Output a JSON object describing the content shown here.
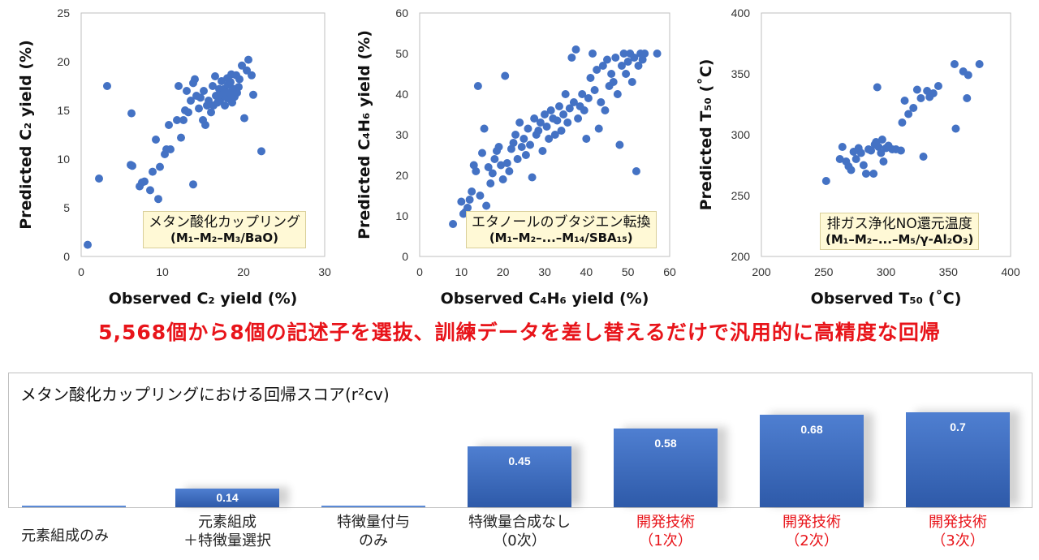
{
  "chart_data": [
    {
      "type": "scatter",
      "xlabel": "Observed C₂ yield (%)",
      "ylabel": "Predicted C₂ yield (%)",
      "xlim": [
        0,
        30
      ],
      "ylim": [
        0,
        25
      ],
      "xticks": [
        0,
        10,
        20,
        30
      ],
      "yticks": [
        0,
        5,
        10,
        15,
        20,
        25
      ],
      "annotation_line1": "メタン酸化カップリング",
      "annotation_line2": "(M₁–M₂–M₃/BaO)",
      "color": "#4472c4",
      "points": [
        [
          0.8,
          1.2
        ],
        [
          2.2,
          8
        ],
        [
          3.2,
          17.5
        ],
        [
          6.2,
          14.7
        ],
        [
          6.1,
          9.4
        ],
        [
          6.3,
          9.3
        ],
        [
          7.2,
          7.2
        ],
        [
          7.5,
          7.6
        ],
        [
          7.8,
          7.7
        ],
        [
          8.5,
          6.8
        ],
        [
          8.8,
          8.7
        ],
        [
          9.2,
          12
        ],
        [
          9.5,
          5.9
        ],
        [
          9.7,
          9.2
        ],
        [
          10.3,
          10.5
        ],
        [
          10.5,
          11
        ],
        [
          10.8,
          13.5
        ],
        [
          11,
          11
        ],
        [
          11.8,
          14
        ],
        [
          12,
          17.5
        ],
        [
          12.3,
          12.2
        ],
        [
          12.6,
          14
        ],
        [
          12.8,
          15
        ],
        [
          13,
          17
        ],
        [
          13.2,
          14.8
        ],
        [
          13.5,
          16
        ],
        [
          13.8,
          7.4
        ],
        [
          13.8,
          17.8
        ],
        [
          14,
          18.2
        ],
        [
          14.2,
          16.5
        ],
        [
          14.5,
          15.2
        ],
        [
          14.7,
          16.3
        ],
        [
          15,
          14
        ],
        [
          15.1,
          17
        ],
        [
          15.3,
          13.5
        ],
        [
          15.5,
          15.5
        ],
        [
          15.7,
          16
        ],
        [
          16,
          14.8
        ],
        [
          16.2,
          17.5
        ],
        [
          16.3,
          15.5
        ],
        [
          16.5,
          18.5
        ],
        [
          16.6,
          16.5
        ],
        [
          16.8,
          15.8
        ],
        [
          17,
          17.2
        ],
        [
          17.1,
          16
        ],
        [
          17.3,
          18
        ],
        [
          17.4,
          16.6
        ],
        [
          17.6,
          17.2
        ],
        [
          17.7,
          15.5
        ],
        [
          17.9,
          16.3
        ],
        [
          18,
          18.3
        ],
        [
          18.1,
          17.6
        ],
        [
          18.2,
          16.2
        ],
        [
          18.3,
          16.8
        ],
        [
          18.4,
          17.9
        ],
        [
          18.5,
          18.7
        ],
        [
          18.6,
          15.8
        ],
        [
          18.8,
          17.2
        ],
        [
          18.9,
          16.4
        ],
        [
          19.1,
          18.6
        ],
        [
          19.2,
          16.8
        ],
        [
          19.4,
          17.4
        ],
        [
          19.5,
          18.2
        ],
        [
          19.8,
          19.6
        ],
        [
          20.1,
          14.2
        ],
        [
          20.4,
          19.1
        ],
        [
          20.6,
          20.2
        ],
        [
          21,
          18.6
        ],
        [
          21.2,
          16.6
        ],
        [
          22.2,
          10.8
        ]
      ]
    },
    {
      "type": "scatter",
      "xlabel": "Observed C₄H₆ yield (%)",
      "ylabel": "Predicted C₄H₆ yield (%)",
      "xlim": [
        0,
        60
      ],
      "ylim": [
        0,
        60
      ],
      "xticks": [
        0,
        10,
        20,
        30,
        40,
        50,
        60
      ],
      "yticks": [
        0,
        10,
        20,
        30,
        40,
        50,
        60
      ],
      "annotation_line1": "エタノールのブタジエン転換",
      "annotation_line2": "(M₁–M₂–...–M₁₄/SBA₁₅)",
      "color": "#4472c4",
      "points": [
        [
          8,
          8
        ],
        [
          10,
          13.5
        ],
        [
          10.5,
          10.5
        ],
        [
          11,
          11
        ],
        [
          11.5,
          12
        ],
        [
          12,
          14
        ],
        [
          12.5,
          16
        ],
        [
          13,
          22.5
        ],
        [
          13.5,
          21
        ],
        [
          14,
          42
        ],
        [
          14.5,
          15
        ],
        [
          15,
          25.5
        ],
        [
          15.5,
          31.5
        ],
        [
          16,
          12.5
        ],
        [
          16.5,
          22
        ],
        [
          17,
          18
        ],
        [
          17.5,
          20.5
        ],
        [
          18,
          24
        ],
        [
          18.5,
          26
        ],
        [
          19,
          27
        ],
        [
          19.5,
          22.5
        ],
        [
          20,
          19
        ],
        [
          20.5,
          44.5
        ],
        [
          21,
          23
        ],
        [
          21.5,
          21
        ],
        [
          22,
          26.5
        ],
        [
          22.5,
          28
        ],
        [
          23,
          30
        ],
        [
          23.5,
          24
        ],
        [
          24,
          33
        ],
        [
          24.5,
          27
        ],
        [
          25,
          29
        ],
        [
          25.5,
          25
        ],
        [
          26,
          31.5
        ],
        [
          26.5,
          27.5
        ],
        [
          27,
          19.5
        ],
        [
          27.5,
          34
        ],
        [
          28,
          30
        ],
        [
          28.5,
          31
        ],
        [
          29,
          33
        ],
        [
          29.5,
          26
        ],
        [
          30,
          35
        ],
        [
          30.5,
          32
        ],
        [
          31,
          29
        ],
        [
          31.5,
          36
        ],
        [
          32,
          34
        ],
        [
          32.5,
          30
        ],
        [
          33,
          33.5
        ],
        [
          33.5,
          37
        ],
        [
          34,
          31
        ],
        [
          34.5,
          35
        ],
        [
          35,
          40
        ],
        [
          35.5,
          33
        ],
        [
          36,
          36.5
        ],
        [
          36.5,
          49
        ],
        [
          37,
          38
        ],
        [
          37.5,
          51
        ],
        [
          38,
          34
        ],
        [
          38.5,
          37
        ],
        [
          39,
          40
        ],
        [
          39.5,
          36
        ],
        [
          40,
          29
        ],
        [
          40.5,
          39
        ],
        [
          41,
          44
        ],
        [
          41.5,
          50
        ],
        [
          42,
          41
        ],
        [
          42.5,
          46
        ],
        [
          43,
          31.5
        ],
        [
          43.5,
          38
        ],
        [
          44,
          47
        ],
        [
          44.5,
          36
        ],
        [
          45,
          48.5
        ],
        [
          45.5,
          42
        ],
        [
          46,
          45
        ],
        [
          46.5,
          43
        ],
        [
          47,
          49
        ],
        [
          47.5,
          40
        ],
        [
          48,
          27.5
        ],
        [
          48.5,
          47
        ],
        [
          49,
          50
        ],
        [
          49.5,
          45
        ],
        [
          50,
          48
        ],
        [
          50.5,
          50
        ],
        [
          51,
          43
        ],
        [
          51.5,
          49
        ],
        [
          52,
          21
        ],
        [
          52.5,
          47
        ],
        [
          53,
          50
        ],
        [
          53.5,
          48.5
        ],
        [
          54,
          50
        ],
        [
          57,
          50
        ]
      ]
    },
    {
      "type": "scatter",
      "xlabel": "Observed T₅₀ (˚C)",
      "ylabel": "Predicted T₅₀ (˚C)",
      "xlim": [
        200,
        400
      ],
      "ylim": [
        200,
        400
      ],
      "xticks": [
        200,
        250,
        300,
        350,
        400
      ],
      "yticks": [
        200,
        250,
        300,
        350,
        400
      ],
      "annotation_line1": "排ガス浄化NO還元温度",
      "annotation_line2": "(M₁–M₂–...–M₅/γ-Al₂O₃)",
      "color": "#4472c4",
      "points": [
        [
          252,
          262
        ],
        [
          263,
          280
        ],
        [
          265,
          290
        ],
        [
          268,
          278
        ],
        [
          270,
          274
        ],
        [
          272,
          271
        ],
        [
          274,
          286
        ],
        [
          276,
          280
        ],
        [
          278,
          289
        ],
        [
          280,
          285
        ],
        [
          282,
          275
        ],
        [
          284,
          268
        ],
        [
          286,
          288
        ],
        [
          288,
          287
        ],
        [
          290,
          268
        ],
        [
          291,
          292
        ],
        [
          292,
          294
        ],
        [
          293,
          339
        ],
        [
          294,
          290
        ],
        [
          296,
          285
        ],
        [
          297,
          296
        ],
        [
          298,
          278
        ],
        [
          300,
          289
        ],
        [
          302,
          291
        ],
        [
          305,
          288
        ],
        [
          308,
          288
        ],
        [
          312,
          287
        ],
        [
          313,
          310
        ],
        [
          315,
          328
        ],
        [
          318,
          317
        ],
        [
          322,
          322
        ],
        [
          325,
          337
        ],
        [
          328,
          330
        ],
        [
          330,
          282
        ],
        [
          333,
          336
        ],
        [
          335,
          331
        ],
        [
          338,
          334
        ],
        [
          342,
          340
        ],
        [
          355,
          358
        ],
        [
          356,
          305
        ],
        [
          362,
          352
        ],
        [
          365,
          330
        ],
        [
          366,
          349
        ],
        [
          375,
          358
        ]
      ]
    },
    {
      "type": "bar",
      "title": "メタン酸化カップリングにおける回帰スコア(r²cv)",
      "categories": [
        "元素組成のみ",
        "元素組成\n＋特徴量選択",
        "特徴量付与\nのみ",
        "特徴量合成なし\n（0次）",
        "開発技術\n（1次）",
        "開発技術\n（2次）",
        "開発技術\n（3次）"
      ],
      "values": [
        0.0,
        0.14,
        0.0,
        0.45,
        0.58,
        0.68,
        0.7
      ],
      "value_labels": [
        "",
        "0.14",
        "",
        "0.45",
        "0.58",
        "0.68",
        "0.7"
      ],
      "highlight_categories": [
        4,
        5,
        6
      ],
      "bar_color": "#3a66bd",
      "highlight_color": "#e8141a"
    }
  ],
  "headline": "5,568個から8個の記述子を選抜、訓練データを差し替えるだけで汎用的に高精度な回帰"
}
